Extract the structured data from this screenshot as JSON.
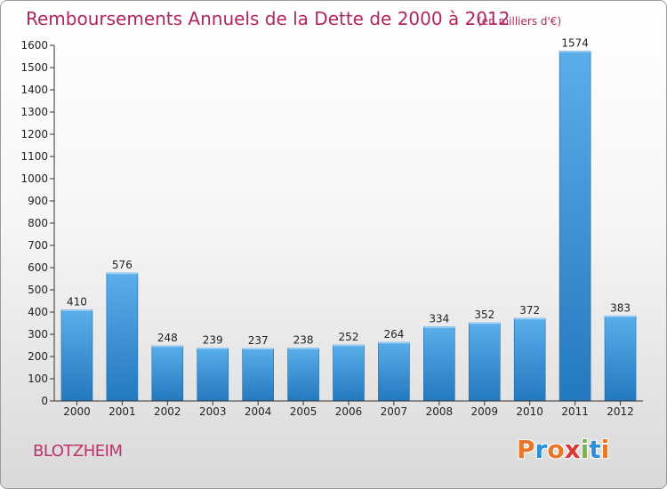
{
  "chart_data": {
    "type": "bar",
    "title": "Remboursements Annuels de la Dette de 2000 à 2012",
    "unit_note": "(en milliers d'€)",
    "categories": [
      "2000",
      "2001",
      "2002",
      "2003",
      "2004",
      "2005",
      "2006",
      "2007",
      "2008",
      "2009",
      "2010",
      "2011",
      "2012"
    ],
    "values": [
      410,
      576,
      248,
      239,
      237,
      238,
      252,
      264,
      334,
      352,
      372,
      1574,
      383
    ],
    "ylim": [
      0,
      1600
    ],
    "yticks": [
      0,
      100,
      200,
      300,
      400,
      500,
      600,
      700,
      800,
      900,
      1000,
      1100,
      1200,
      1300,
      1400,
      1500,
      1600
    ],
    "grid": false,
    "bar_color": "#3a93d8"
  },
  "footer": {
    "city": "BLOTZHEIM",
    "logo_text": "Proxiti",
    "logo_colors": [
      "#e8772a",
      "#2d8fd6",
      "#e8772a",
      "#d83a3a",
      "#7ab648",
      "#2d8fd6",
      "#e8772a"
    ]
  }
}
